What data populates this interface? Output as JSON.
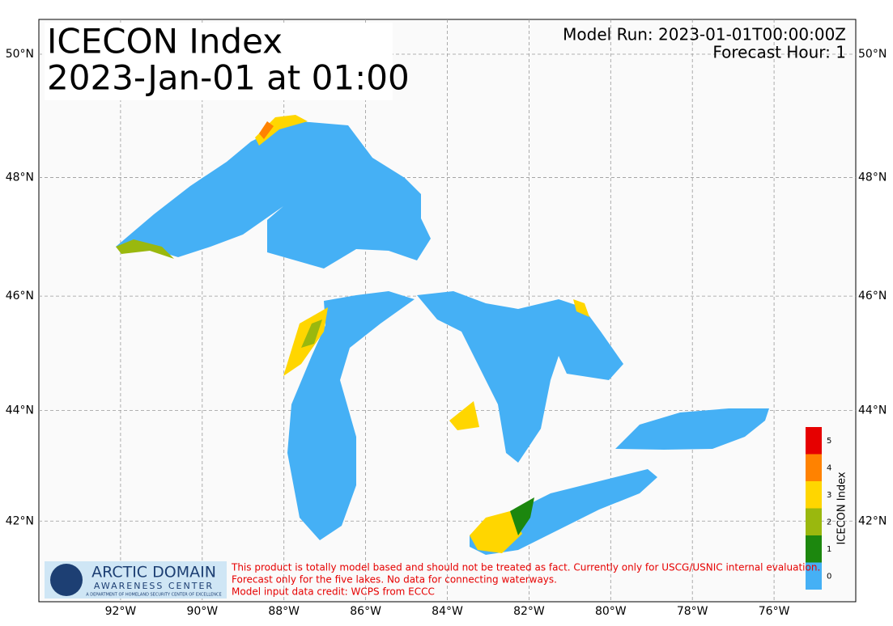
{
  "header": {
    "title": "ICECON Index",
    "subtitle": "2023-Jan-01 at 01:00",
    "model_run": "Model Run: 2023-01-01T00:00:00Z",
    "forecast_hour": "Forecast Hour: 1"
  },
  "map": {
    "lonlim": [
      -94,
      -74
    ],
    "latlim": [
      40.5,
      50.55
    ],
    "grid": true,
    "lon_ticks": [
      {
        "value": -92,
        "label": "92°W"
      },
      {
        "value": -90,
        "label": "90°W"
      },
      {
        "value": -88,
        "label": "88°W"
      },
      {
        "value": -86,
        "label": "86°W"
      },
      {
        "value": -84,
        "label": "84°W"
      },
      {
        "value": -82,
        "label": "82°W"
      },
      {
        "value": -80,
        "label": "80°W"
      },
      {
        "value": -78,
        "label": "78°W"
      },
      {
        "value": -76,
        "label": "76°W"
      }
    ],
    "lat_ticks": [
      {
        "value": 50,
        "label": "50°N"
      },
      {
        "value": 48,
        "label": "48°N"
      },
      {
        "value": 46,
        "label": "46°N"
      },
      {
        "value": 44,
        "label": "44°N"
      },
      {
        "value": 42,
        "label": "42°N"
      }
    ]
  },
  "colorbar": {
    "label": "ICECON Index",
    "levels": [
      {
        "value": 0,
        "color": "#45b0f5"
      },
      {
        "value": 1,
        "color": "#1c870e"
      },
      {
        "value": 2,
        "color": "#9ab80e"
      },
      {
        "value": 3,
        "color": "#ffd600"
      },
      {
        "value": 4,
        "color": "#ff8200"
      },
      {
        "value": 5,
        "color": "#e60000"
      }
    ]
  },
  "logo": {
    "name": "ARCTIC DOMAIN",
    "name2": "AWARENESS CENTER",
    "tagline": "A DEPARTMENT OF HOMELAND SECURITY CENTER OF EXCELLENCE"
  },
  "disclaimer": [
    "This product is totally model based and should not be treated as fact. Currently only for USCG/USNIC internal evaluation.",
    "Forecast only for the five lakes. No data for connecting waterways.",
    "Model input data credit: WCPS from ECCC"
  ]
}
